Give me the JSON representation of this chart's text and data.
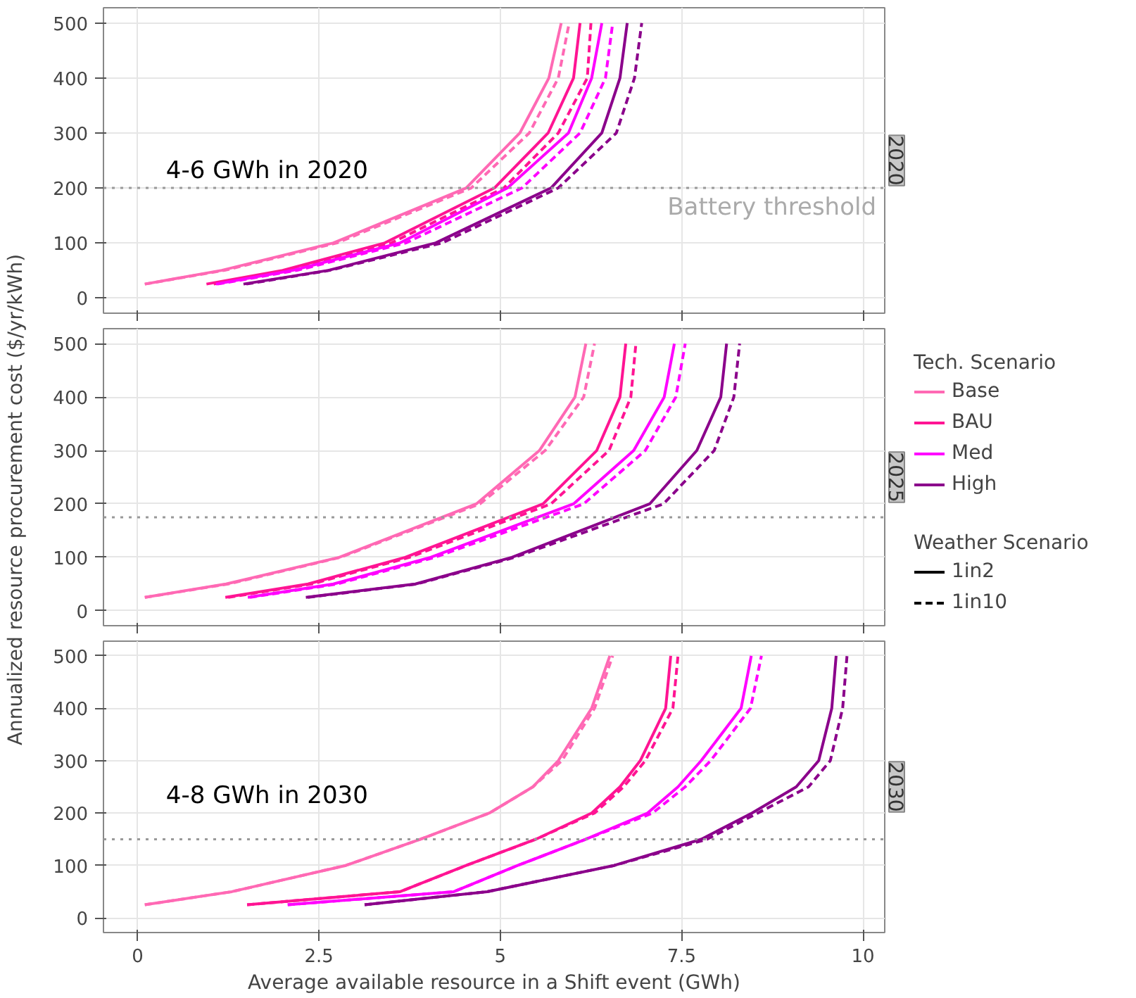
{
  "chart_data": [
    {
      "type": "line",
      "subtitle": "2020",
      "xlim": [
        -0.47,
        10.3
      ],
      "xticks": [
        0,
        2.5,
        5,
        7.5,
        10
      ],
      "ylim": [
        -28,
        528
      ],
      "yticks": [
        0,
        100,
        200,
        300,
        400,
        500
      ],
      "grid": true,
      "tick_labels": "y",
      "ref_lines": [
        {
          "axis": "y",
          "value": 200,
          "label": "Battery threshold",
          "color": "#999999",
          "line_style": "dotted"
        }
      ],
      "annotations": [
        "4-6 GWh in 2020"
      ],
      "series": [
        {
          "color": "#ff69b4",
          "line_style": "solid",
          "x": [
            0.1,
            1.16,
            2.7,
            4.53,
            5.27,
            5.67,
            5.84
          ],
          "values": [
            25,
            50,
            100,
            200,
            300,
            400,
            500
          ]
        },
        {
          "color": "#ff69b4",
          "line_style": "dashed",
          "x": [
            0.1,
            1.2,
            2.75,
            4.6,
            5.4,
            5.8,
            5.95
          ],
          "values": [
            25,
            50,
            100,
            200,
            300,
            400,
            500
          ]
        },
        {
          "color": "#ff1493",
          "line_style": "solid",
          "x": [
            0.95,
            2.0,
            3.41,
            4.92,
            5.66,
            6.01,
            6.1
          ],
          "values": [
            25,
            50,
            100,
            200,
            300,
            400,
            500
          ]
        },
        {
          "color": "#ff1493",
          "line_style": "dashed",
          "x": [
            1.05,
            2.05,
            3.5,
            5.05,
            5.8,
            6.2,
            6.25
          ],
          "values": [
            25,
            50,
            100,
            200,
            300,
            400,
            500
          ]
        },
        {
          "color": "#ff00ff",
          "line_style": "solid",
          "x": [
            1.08,
            2.14,
            3.62,
            5.1,
            5.94,
            6.26,
            6.4
          ],
          "values": [
            25,
            50,
            100,
            200,
            300,
            400,
            500
          ]
        },
        {
          "color": "#ff00ff",
          "line_style": "dashed",
          "x": [
            1.1,
            2.2,
            3.7,
            5.3,
            6.1,
            6.45,
            6.55
          ],
          "values": [
            25,
            50,
            100,
            200,
            300,
            400,
            500
          ]
        },
        {
          "color": "#8b008b",
          "line_style": "solid",
          "x": [
            1.46,
            2.63,
            4.11,
            5.7,
            6.4,
            6.65,
            6.75
          ],
          "values": [
            25,
            50,
            100,
            200,
            300,
            400,
            500
          ]
        },
        {
          "color": "#8b008b",
          "line_style": "dashed",
          "x": [
            1.5,
            2.65,
            4.2,
            5.8,
            6.6,
            6.85,
            6.95
          ],
          "values": [
            25,
            50,
            100,
            200,
            300,
            400,
            500
          ]
        }
      ]
    },
    {
      "type": "line",
      "subtitle": "2025",
      "xlim": [
        -0.47,
        10.3
      ],
      "xticks": [
        0,
        2.5,
        5,
        7.5,
        10
      ],
      "ylim": [
        -28,
        528
      ],
      "yticks": [
        0,
        100,
        200,
        300,
        400,
        500
      ],
      "grid": true,
      "tick_labels": "y",
      "ylabel": "Annualized resource procurement cost ($/yr/kWh)",
      "legend": "right",
      "legend_title": "Tech. Scenario",
      "ref_lines": [
        {
          "axis": "y",
          "value": 175,
          "color": "#999999",
          "line_style": "dotted"
        }
      ],
      "annotations": [
        "Weather Scenario",
        "1in2",
        "1in10"
      ],
      "series": [
        {
          "name": "Base",
          "color": "#ff69b4",
          "line_style": "solid",
          "x": [
            0.1,
            1.22,
            2.78,
            4.67,
            5.54,
            6.03,
            6.18
          ],
          "values": [
            25,
            50,
            100,
            200,
            300,
            400,
            500
          ]
        },
        {
          "color": "#ff69b4",
          "line_style": "dashed",
          "x": [
            0.1,
            1.25,
            2.8,
            4.72,
            5.62,
            6.15,
            6.3
          ],
          "values": [
            25,
            50,
            100,
            200,
            300,
            400,
            500
          ]
        },
        {
          "name": "BAU",
          "color": "#ff1493",
          "line_style": "solid",
          "x": [
            1.21,
            2.35,
            3.69,
            5.59,
            6.33,
            6.65,
            6.73
          ],
          "values": [
            25,
            50,
            100,
            200,
            300,
            400,
            500
          ]
        },
        {
          "color": "#ff1493",
          "line_style": "dashed",
          "x": [
            1.25,
            2.4,
            3.75,
            5.7,
            6.5,
            6.8,
            6.87
          ],
          "values": [
            25,
            50,
            100,
            200,
            300,
            400,
            500
          ]
        },
        {
          "name": "Med",
          "color": "#ff00ff",
          "line_style": "solid",
          "x": [
            1.52,
            2.7,
            4.04,
            6.01,
            6.84,
            7.26,
            7.4
          ],
          "values": [
            25,
            50,
            100,
            200,
            300,
            400,
            500
          ]
        },
        {
          "color": "#ff00ff",
          "line_style": "dashed",
          "x": [
            1.55,
            2.75,
            4.1,
            6.15,
            7.0,
            7.42,
            7.55
          ],
          "values": [
            25,
            50,
            100,
            200,
            300,
            400,
            500
          ]
        },
        {
          "name": "High",
          "color": "#8b008b",
          "line_style": "solid",
          "x": [
            2.32,
            3.83,
            5.16,
            7.06,
            7.71,
            8.04,
            8.12
          ],
          "values": [
            25,
            50,
            100,
            200,
            300,
            400,
            500
          ]
        },
        {
          "color": "#8b008b",
          "line_style": "dashed",
          "x": [
            2.35,
            3.85,
            5.2,
            7.25,
            7.95,
            8.22,
            8.3
          ],
          "values": [
            25,
            50,
            100,
            200,
            300,
            400,
            500
          ]
        }
      ]
    },
    {
      "type": "line",
      "subtitle": "2030",
      "xlim": [
        -0.47,
        10.3
      ],
      "xticks": [
        0,
        2.5,
        5,
        7.5,
        10
      ],
      "ylim": [
        -28,
        528
      ],
      "yticks": [
        0,
        100,
        200,
        300,
        400,
        500
      ],
      "grid": true,
      "xlabel": "Average available resource in a Shift event (GWh)",
      "ref_lines": [
        {
          "axis": "y",
          "value": 150,
          "color": "#999999",
          "line_style": "dotted"
        }
      ],
      "annotations": [
        "4-8 GWh in 2030"
      ],
      "series": [
        {
          "color": "#ff69b4",
          "line_style": "solid",
          "x": [
            0.1,
            1.3,
            2.87,
            3.9,
            4.85,
            5.45,
            5.8,
            6.26,
            6.51
          ],
          "values": [
            25,
            50,
            100,
            150,
            200,
            250,
            300,
            400,
            500
          ]
        },
        {
          "color": "#ff69b4",
          "line_style": "dashed",
          "x": [
            0.1,
            1.3,
            2.87,
            3.9,
            4.85,
            5.45,
            5.85,
            6.3,
            6.55
          ],
          "values": [
            25,
            50,
            100,
            150,
            200,
            250,
            300,
            400,
            500
          ]
        },
        {
          "color": "#ff1493",
          "line_style": "solid",
          "x": [
            1.51,
            3.62,
            4.53,
            5.49,
            6.26,
            6.65,
            6.93,
            7.28,
            7.35
          ],
          "values": [
            25,
            50,
            100,
            150,
            200,
            250,
            300,
            400,
            500
          ]
        },
        {
          "color": "#ff1493",
          "line_style": "dashed",
          "x": [
            1.51,
            3.62,
            4.53,
            5.49,
            6.3,
            6.7,
            7.0,
            7.38,
            7.45
          ],
          "values": [
            25,
            50,
            100,
            150,
            200,
            250,
            300,
            400,
            500
          ]
        },
        {
          "color": "#ff00ff",
          "line_style": "solid",
          "x": [
            2.07,
            4.36,
            5.24,
            6.18,
            7.03,
            7.45,
            7.77,
            8.32,
            8.46
          ],
          "values": [
            25,
            50,
            100,
            150,
            200,
            250,
            300,
            400,
            500
          ]
        },
        {
          "color": "#ff00ff",
          "line_style": "dashed",
          "x": [
            2.07,
            4.36,
            5.24,
            6.18,
            7.1,
            7.55,
            7.9,
            8.45,
            8.6
          ],
          "values": [
            25,
            50,
            100,
            150,
            200,
            250,
            300,
            400,
            500
          ]
        },
        {
          "color": "#8b008b",
          "line_style": "solid",
          "x": [
            3.13,
            4.82,
            6.57,
            7.77,
            8.47,
            9.08,
            9.39,
            9.57,
            9.63
          ],
          "values": [
            25,
            50,
            100,
            150,
            200,
            250,
            300,
            400,
            500
          ]
        },
        {
          "color": "#8b008b",
          "line_style": "dashed",
          "x": [
            3.13,
            4.82,
            6.57,
            7.85,
            8.55,
            9.25,
            9.55,
            9.72,
            9.78
          ],
          "values": [
            25,
            50,
            100,
            150,
            200,
            250,
            300,
            400,
            500
          ]
        }
      ]
    }
  ]
}
